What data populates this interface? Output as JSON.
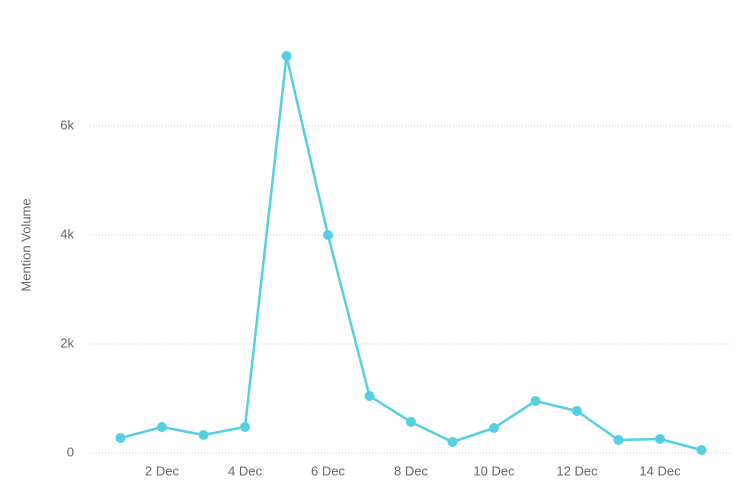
{
  "chart_data": {
    "type": "line",
    "y_label": "Mention Volume",
    "categories": [
      null,
      "2 Dec",
      null,
      "4 Dec",
      null,
      "6 Dec",
      null,
      "8 Dec",
      null,
      "10 Dec",
      null,
      "12 Dec",
      null,
      "14 Dec",
      null
    ],
    "series": [
      {
        "color": "#56cfe1",
        "values": [
          275,
          477,
          330,
          477,
          7284,
          4000,
          1046,
          569,
          202,
          459,
          954,
          771,
          239,
          257,
          55
        ]
      }
    ],
    "ylim": [
      0,
      8000
    ],
    "yticks": [
      0,
      {
        "value": 2000,
        "label": "2k"
      },
      {
        "value": 4000,
        "label": "4k"
      },
      {
        "value": 6000,
        "label": "6k"
      }
    ],
    "grid": true
  }
}
